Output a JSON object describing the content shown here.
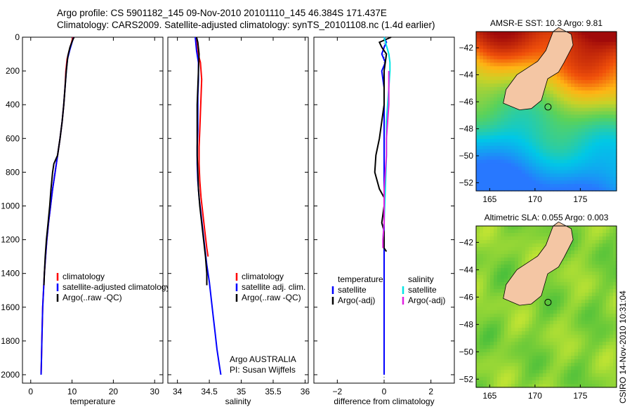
{
  "header": {
    "line1": "Argo profile: CS 5901182_145 09-Nov-2010 20101110_145 46.384S 171.437E",
    "line2": "Climatology: CARS2009. Satellite-adjusted climatology: synTS_20101108.nc (1.4d earlier)"
  },
  "stamp": "CSIRO 14-Nov-2010 10:31:04",
  "colors": {
    "clim": "#ff0000",
    "sat": "#0000ff",
    "argo": "#000000",
    "sal_sat": "#00e5e5",
    "sal_argo": "#e020e0"
  },
  "chart_data": [
    {
      "type": "line",
      "id": "temperature",
      "xlabel": "temperature",
      "ylabel": "",
      "xlim": [
        -2,
        32
      ],
      "ylim": [
        2050,
        0
      ],
      "xticks": [
        0,
        10,
        20,
        30
      ],
      "yticks": [
        0,
        200,
        400,
        600,
        800,
        1000,
        1200,
        1400,
        1600,
        1800,
        2000
      ],
      "legend": [
        "climatology",
        "satellite-adjusted climatology",
        "Argo(..raw -QC)"
      ],
      "series": [
        {
          "name": "climatology",
          "color": "#ff0000",
          "points": [
            [
              10.2,
              0
            ],
            [
              9.9,
              30
            ],
            [
              9.3,
              80
            ],
            [
              8.8,
              130
            ],
            [
              8.5,
              200
            ],
            [
              8.3,
              300
            ],
            [
              8.0,
              400
            ],
            [
              7.6,
              500
            ],
            [
              7.1,
              600
            ],
            [
              6.5,
              700
            ],
            [
              5.9,
              800
            ],
            [
              5.3,
              900
            ],
            [
              4.8,
              1000
            ],
            [
              4.3,
              1100
            ],
            [
              3.9,
              1200
            ],
            [
              3.6,
              1300
            ],
            [
              3.3,
              1400
            ],
            [
              3.1,
              1500
            ],
            [
              2.9,
              1600
            ],
            [
              2.8,
              1700
            ],
            [
              2.7,
              1800
            ],
            [
              2.6,
              1900
            ],
            [
              2.5,
              2000
            ]
          ]
        },
        {
          "name": "satellite-adjusted climatology",
          "color": "#0000ff",
          "points": [
            [
              10.4,
              0
            ],
            [
              10.0,
              30
            ],
            [
              9.4,
              80
            ],
            [
              8.9,
              130
            ],
            [
              8.6,
              200
            ],
            [
              8.3,
              300
            ],
            [
              8.0,
              400
            ],
            [
              7.6,
              500
            ],
            [
              7.1,
              600
            ],
            [
              6.5,
              700
            ],
            [
              5.9,
              800
            ],
            [
              5.3,
              900
            ],
            [
              4.8,
              1000
            ],
            [
              4.3,
              1100
            ],
            [
              3.9,
              1200
            ],
            [
              3.6,
              1300
            ],
            [
              3.3,
              1400
            ],
            [
              3.1,
              1500
            ],
            [
              2.9,
              1600
            ],
            [
              2.8,
              1700
            ],
            [
              2.7,
              1800
            ],
            [
              2.6,
              1900
            ],
            [
              2.5,
              2000
            ]
          ]
        },
        {
          "name": "Argo(..raw -QC)",
          "color": "#000000",
          "points": [
            [
              10.5,
              0
            ],
            [
              10.1,
              20
            ],
            [
              9.5,
              60
            ],
            [
              9.0,
              110
            ],
            [
              8.6,
              200
            ],
            [
              8.3,
              300
            ],
            [
              8.0,
              400
            ],
            [
              7.6,
              500
            ],
            [
              7.1,
              600
            ],
            [
              6.5,
              700
            ],
            [
              5.6,
              750
            ],
            [
              5.3,
              800
            ],
            [
              4.9,
              900
            ],
            [
              4.6,
              1000
            ],
            [
              4.2,
              1100
            ],
            [
              3.8,
              1200
            ],
            [
              3.5,
              1300
            ],
            [
              3.3,
              1400
            ],
            [
              3.2,
              1470
            ]
          ]
        }
      ]
    },
    {
      "type": "line",
      "id": "salinity",
      "xlabel": "salinity",
      "ylabel": "",
      "xlim": [
        33.85,
        36.05
      ],
      "ylim": [
        2050,
        0
      ],
      "xticks": [
        34,
        34.5,
        35,
        35.5,
        36
      ],
      "xticklabels": [
        "34",
        "34.5",
        "35",
        "35.5",
        "36"
      ],
      "legend": [
        "climatology",
        "satellite adj. clim.",
        "Argo(..raw -QC)"
      ],
      "series": [
        {
          "name": "climatology",
          "color": "#ff0000",
          "points": [
            [
              34.29,
              0
            ],
            [
              34.31,
              80
            ],
            [
              34.36,
              150
            ],
            [
              34.38,
              250
            ],
            [
              34.37,
              350
            ],
            [
              34.36,
              450
            ],
            [
              34.35,
              550
            ],
            [
              34.34,
              650
            ],
            [
              34.34,
              750
            ],
            [
              34.35,
              850
            ],
            [
              34.37,
              950
            ],
            [
              34.4,
              1050
            ],
            [
              34.43,
              1150
            ],
            [
              34.46,
              1250
            ],
            [
              34.48,
              1300
            ]
          ]
        },
        {
          "name": "satellite adj. clim.",
          "color": "#0000ff",
          "points": [
            [
              34.28,
              0
            ],
            [
              34.3,
              80
            ],
            [
              34.33,
              150
            ],
            [
              34.33,
              250
            ],
            [
              34.32,
              350
            ],
            [
              34.32,
              450
            ],
            [
              34.32,
              550
            ],
            [
              34.31,
              650
            ],
            [
              34.31,
              750
            ],
            [
              34.32,
              850
            ],
            [
              34.34,
              950
            ],
            [
              34.37,
              1050
            ],
            [
              34.4,
              1150
            ],
            [
              34.43,
              1250
            ],
            [
              34.46,
              1350
            ],
            [
              34.5,
              1450
            ],
            [
              34.53,
              1550
            ],
            [
              34.56,
              1650
            ],
            [
              34.59,
              1750
            ],
            [
              34.62,
              1850
            ],
            [
              34.66,
              1950
            ],
            [
              34.68,
              2000
            ]
          ]
        },
        {
          "name": "Argo(..raw -QC)",
          "color": "#000000",
          "points": [
            [
              34.3,
              0
            ],
            [
              34.32,
              30
            ],
            [
              34.34,
              100
            ],
            [
              34.33,
              200
            ],
            [
              34.32,
              300
            ],
            [
              34.31,
              400
            ],
            [
              34.31,
              500
            ],
            [
              34.31,
              600
            ],
            [
              34.31,
              700
            ],
            [
              34.32,
              800
            ],
            [
              34.33,
              900
            ],
            [
              34.35,
              1000
            ],
            [
              34.38,
              1100
            ],
            [
              34.41,
              1200
            ],
            [
              34.44,
              1300
            ],
            [
              34.46,
              1400
            ],
            [
              34.46,
              1470
            ]
          ]
        }
      ],
      "annotation": [
        "Argo AUSTRALIA",
        "PI: Susan Wijffels"
      ]
    },
    {
      "type": "line",
      "id": "difference",
      "xlabel": "difference from climatology",
      "ylabel": "",
      "xlim": [
        -3,
        3
      ],
      "ylim": [
        2050,
        0
      ],
      "xticks": [
        -2,
        0,
        2
      ],
      "xticklabels": [
        "−2",
        "0",
        "2"
      ],
      "legend_temperature_title": "temperature",
      "legend_salinity_title": "salinity",
      "legend": [
        "satellite",
        "Argo(-adj)",
        "satellite",
        "Argo(-adj)"
      ],
      "series": [
        {
          "name": "temperature satellite",
          "color": "#0000ff",
          "points": [
            [
              0.0,
              0
            ],
            [
              0.1,
              30
            ],
            [
              0.0,
              60
            ],
            [
              -0.1,
              100
            ],
            [
              0.05,
              150
            ],
            [
              -0.1,
              200
            ],
            [
              -0.05,
              250
            ],
            [
              0.0,
              300
            ],
            [
              0.0,
              500
            ],
            [
              0.0,
              700
            ],
            [
              0.0,
              1000
            ],
            [
              0.0,
              1200
            ],
            [
              0.0,
              2000
            ]
          ]
        },
        {
          "name": "temperature Argo(-adj)",
          "color": "#000000",
          "points": [
            [
              0.3,
              0
            ],
            [
              -0.2,
              30
            ],
            [
              -0.1,
              60
            ],
            [
              0.1,
              100
            ],
            [
              0.0,
              200
            ],
            [
              0.0,
              400
            ],
            [
              -0.2,
              600
            ],
            [
              -0.35,
              700
            ],
            [
              -0.4,
              800
            ],
            [
              -0.2,
              900
            ],
            [
              0.0,
              950
            ],
            [
              0.0,
              1000
            ],
            [
              -0.1,
              1100
            ],
            [
              0.0,
              1150
            ],
            [
              0.0,
              1250
            ],
            [
              0.1,
              1270
            ]
          ]
        },
        {
          "name": "salinity satellite",
          "color": "#00e5e5",
          "points": [
            [
              0.0,
              0
            ],
            [
              0.1,
              50
            ],
            [
              0.2,
              100
            ],
            [
              0.25,
              150
            ],
            [
              0.25,
              200
            ],
            [
              0.2,
              300
            ],
            [
              0.15,
              400
            ],
            [
              0.1,
              500
            ],
            [
              0.1,
              700
            ],
            [
              0.05,
              900
            ],
            [
              0.0,
              1100
            ],
            [
              -0.05,
              1200
            ]
          ]
        },
        {
          "name": "salinity Argo(-adj)",
          "color": "#e020e0",
          "points": [
            [
              0.2,
              200
            ],
            [
              0.2,
              300
            ],
            [
              0.2,
              400
            ],
            [
              0.15,
              500
            ],
            [
              0.1,
              600
            ],
            [
              0.1,
              700
            ],
            [
              0.05,
              800
            ],
            [
              0.0,
              900
            ],
            [
              0.0,
              1000
            ],
            [
              0.0,
              1100
            ],
            [
              -0.05,
              1200
            ],
            [
              -0.05,
              1250
            ]
          ]
        }
      ]
    },
    {
      "type": "heatmap",
      "id": "sst-map",
      "title": "AMSR-E SST: 10.3 Argo: 9.81",
      "xlim": [
        163.5,
        179
      ],
      "ylim": [
        -52.6,
        -40.8
      ],
      "xticks": [
        165,
        170,
        175
      ],
      "yticks": [
        -42,
        -44,
        -46,
        -48,
        -50,
        -52
      ],
      "argo_position": [
        171.437,
        -46.384
      ],
      "argo_value": 9.81,
      "satellite_value": 10.3,
      "land": [
        [
          172.6,
          -40.5
        ],
        [
          174.0,
          -41.0
        ],
        [
          174.2,
          -41.8
        ],
        [
          173.2,
          -43.1
        ],
        [
          172.6,
          -43.8
        ],
        [
          171.4,
          -44.3
        ],
        [
          171.0,
          -45.2
        ],
        [
          170.7,
          -45.9
        ],
        [
          169.6,
          -46.5
        ],
        [
          168.3,
          -46.6
        ],
        [
          166.5,
          -46.1
        ],
        [
          166.8,
          -45.1
        ],
        [
          168.0,
          -44.0
        ],
        [
          170.3,
          -43.0
        ],
        [
          171.2,
          -42.2
        ],
        [
          172.0,
          -40.8
        ]
      ]
    },
    {
      "type": "heatmap",
      "id": "sla-map",
      "title": "Altimetric SLA: 0.055 Argo: 0.003",
      "xlim": [
        163.5,
        179
      ],
      "ylim": [
        -52.6,
        -40.8
      ],
      "xticks": [
        165,
        170,
        175
      ],
      "yticks": [
        -42,
        -44,
        -46,
        -48,
        -50,
        -52
      ],
      "argo_position": [
        171.437,
        -46.384
      ],
      "argo_value": 0.003,
      "satellite_value": 0.055,
      "land": [
        [
          172.6,
          -40.5
        ],
        [
          174.0,
          -41.0
        ],
        [
          174.2,
          -41.8
        ],
        [
          173.2,
          -43.1
        ],
        [
          172.6,
          -43.8
        ],
        [
          171.4,
          -44.3
        ],
        [
          171.0,
          -45.2
        ],
        [
          170.7,
          -45.9
        ],
        [
          169.6,
          -46.5
        ],
        [
          168.3,
          -46.6
        ],
        [
          166.5,
          -46.1
        ],
        [
          166.8,
          -45.1
        ],
        [
          168.0,
          -44.0
        ],
        [
          170.3,
          -43.0
        ],
        [
          171.2,
          -42.2
        ],
        [
          172.0,
          -40.8
        ]
      ]
    }
  ]
}
